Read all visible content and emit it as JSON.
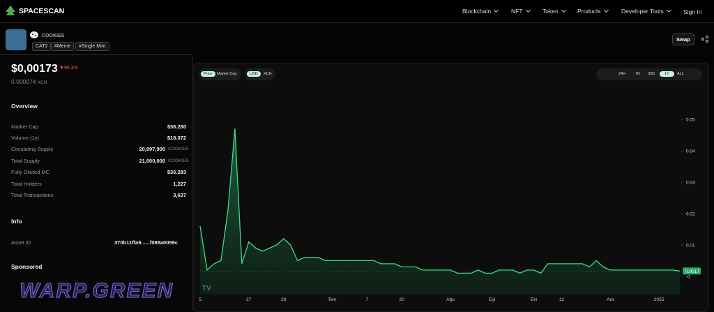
{
  "nav": {
    "logo": "SPACESCAN",
    "items": [
      "Blockchain",
      "NFT",
      "Token",
      "Products",
      "Developer Tools"
    ],
    "sign_in": "Sign In"
  },
  "token": {
    "name": "COOKIES",
    "tags": [
      "CAT2",
      "#Meme",
      "#Single Mint"
    ],
    "swap": "Swap"
  },
  "price": {
    "usd": "$0,00173",
    "change": "96.3%",
    "xch": "0.000074",
    "xch_unit": "XCH"
  },
  "overview": {
    "title": "Overview",
    "rows": [
      [
        "Market Cap",
        "$36.280"
      ],
      [
        "Volume (1y)",
        "$18.072"
      ],
      [
        "Circulating Supply",
        "20,997,900",
        "COOKIES"
      ],
      [
        "Total Supply",
        "21,000,000",
        "COOKIES"
      ],
      [
        "Fully Diluted MC",
        "$36.283"
      ],
      [
        "Total Holders",
        "1,227"
      ],
      [
        "Total Transactions",
        "3,637"
      ]
    ]
  },
  "info": {
    "title": "Info",
    "asset_id_label": "Asset ID",
    "asset_id": "370b11ffa9......f088a0059c"
  },
  "sponsored": {
    "title": "Sponsored",
    "banner": "WARP.GREEN"
  },
  "chart_controls": {
    "metric": [
      "Price",
      "Market Cap"
    ],
    "currency": [
      "USD",
      "XCH"
    ],
    "ranges": [
      "24H",
      "7D",
      "30D",
      "1Y",
      "ALL"
    ]
  },
  "chart_data": {
    "type": "line",
    "color": "#3ddc84",
    "categories": [
      "5",
      null,
      null,
      null,
      null,
      null,
      null,
      "27",
      null,
      null,
      null,
      null,
      "28",
      null,
      null,
      null,
      null,
      null,
      null,
      "Tem",
      null,
      null,
      null,
      null,
      "7",
      null,
      null,
      null,
      null,
      "20",
      null,
      null,
      null,
      null,
      null,
      null,
      "Ağu",
      null,
      null,
      null,
      null,
      null,
      "Eyl",
      null,
      null,
      null,
      null,
      null,
      "Eki",
      null,
      null,
      null,
      "12",
      null,
      null,
      null,
      null,
      null,
      null,
      "Ara",
      null,
      null,
      null,
      null,
      null,
      null,
      "2025",
      null,
      null,
      null
    ],
    "values": [
      0.016,
      0.002,
      0.004,
      0.005,
      0.021,
      0.047,
      0.004,
      0.011,
      0.009,
      0.008,
      0.009,
      0.01,
      0.012,
      0.01,
      0.005,
      0.006,
      0.006,
      0.006,
      0.005,
      0.005,
      0.005,
      0.005,
      0.005,
      0.005,
      0.005,
      0.005,
      0.004,
      0.004,
      0.004,
      0.003,
      0.003,
      0.003,
      0.002,
      0.002,
      0.002,
      0.002,
      0.002,
      0.001,
      0.001,
      0.001,
      0.002,
      0.001,
      0.001,
      0.002,
      0.002,
      0.002,
      0.001,
      0.002,
      0.002,
      0.001,
      0.004,
      0.004,
      0.004,
      0.004,
      0.004,
      0.004,
      0.003,
      0.005,
      0.003,
      0.002,
      0.002,
      0.002,
      0.002,
      0.002,
      0.002,
      0.002,
      0.002,
      0.002,
      0.002,
      0.0017
    ],
    "ylim": [
      -0.0058,
      0.0591
    ],
    "yticks": [
      {
        "value": 0,
        "label": "-0"
      },
      0.01,
      0.02,
      0.03,
      0.04,
      0.05
    ],
    "current_price_label": "0.0017"
  }
}
